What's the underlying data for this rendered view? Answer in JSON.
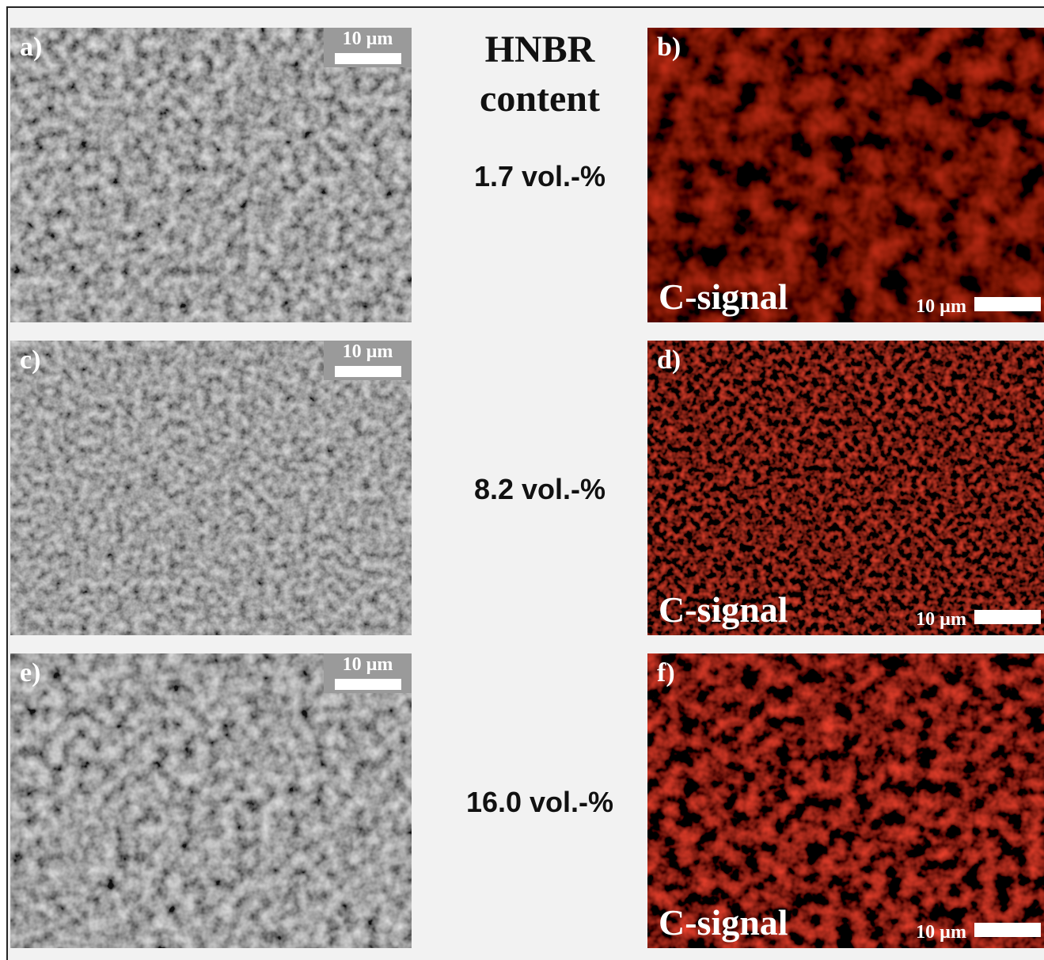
{
  "header": {
    "title": "HNBR content"
  },
  "rows": [
    {
      "sem": {
        "label": "a)",
        "scale": "10 µm"
      },
      "content": "1.7 vol.-%",
      "edx": {
        "label": "b)",
        "signal": "C-signal",
        "scale": "10 µm"
      }
    },
    {
      "sem": {
        "label": "c)",
        "scale": "10 µm"
      },
      "content": "8.2 vol.-%",
      "edx": {
        "label": "d)",
        "signal": "C-signal",
        "scale": "10 µm"
      }
    },
    {
      "sem": {
        "label": "e)",
        "scale": "10 µm"
      },
      "content": "16.0 vol.-%",
      "edx": {
        "label": "f)",
        "signal": "C-signal",
        "scale": "10 µm"
      }
    }
  ]
}
